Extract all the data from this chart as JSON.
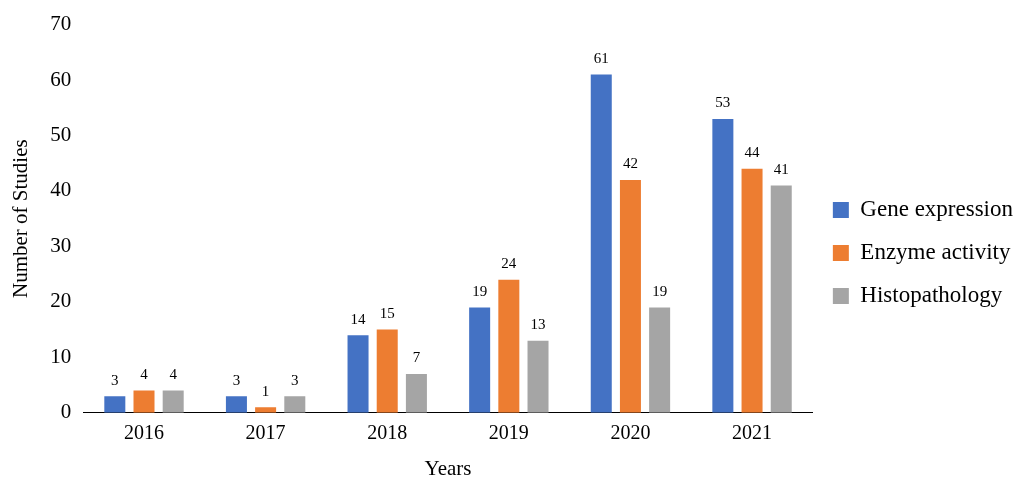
{
  "chart_data": {
    "type": "bar",
    "xlabel": "Years",
    "ylabel": "Number of Studies",
    "categories": [
      "2016",
      "2017",
      "2018",
      "2019",
      "2020",
      "2021"
    ],
    "series": [
      {
        "name": "Gene expression",
        "color": "#4472c4",
        "values": [
          3,
          3,
          14,
          19,
          61,
          53
        ]
      },
      {
        "name": "Enzyme activity",
        "color": "#ed7d31",
        "values": [
          4,
          1,
          15,
          24,
          42,
          44
        ]
      },
      {
        "name": "Histopathology",
        "color": "#a5a5a5",
        "values": [
          4,
          3,
          7,
          13,
          19,
          41
        ]
      }
    ],
    "ylim": [
      0,
      70
    ],
    "yticks": [
      0,
      10,
      20,
      30,
      40,
      50,
      60,
      70
    ],
    "grid": false,
    "legend": "right",
    "data_labels": true
  }
}
